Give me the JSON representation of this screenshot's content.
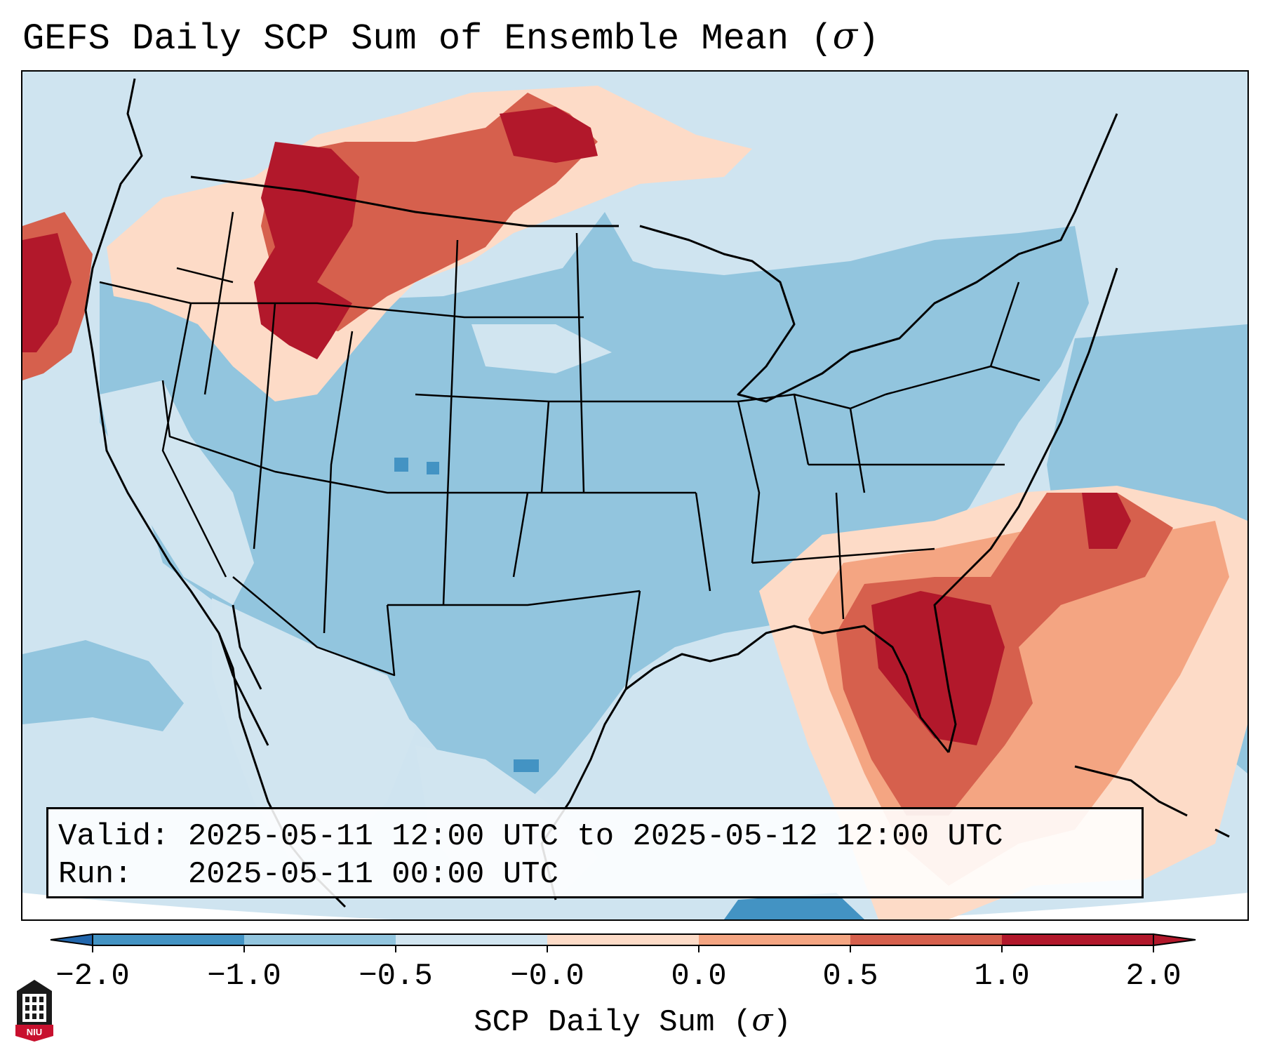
{
  "header": {
    "title": "GEFS Daily SCP Sum of Ensemble Mean (",
    "title_symbol": "σ",
    "title_close": ")"
  },
  "info": {
    "valid_line": "Valid: 2025-05-11 12:00 UTC to 2025-05-12 12:00 UTC",
    "run_line": "Run:   2025-05-11 00:00 UTC"
  },
  "colorbar": {
    "ticks": [
      "−2.0",
      "−1.0",
      "−0.5",
      "−0.0",
      "0.0",
      "0.5",
      "1.0",
      "2.0"
    ],
    "colors": [
      "#4393c3",
      "#92c5de",
      "#d1e5f0",
      "#fddbc7",
      "#f4a582",
      "#d6604d",
      "#b2182b"
    ],
    "under_color": "#2166ac",
    "over_color": "#b2182b",
    "label": "SCP Daily Sum (",
    "label_symbol": "σ",
    "label_close": ")"
  },
  "logo": {
    "text": "NIU",
    "icon": "niu-tower-logo-icon"
  },
  "palette": {
    "ocean_base": "#cfe4f0",
    "land_base": "#92c5de",
    "anomaly_low": "#4393c3",
    "anomaly_mid_pos": "#f4a582",
    "anomaly_high": "#d6604d",
    "anomaly_max": "#b2182b",
    "boundary": "#000000"
  }
}
